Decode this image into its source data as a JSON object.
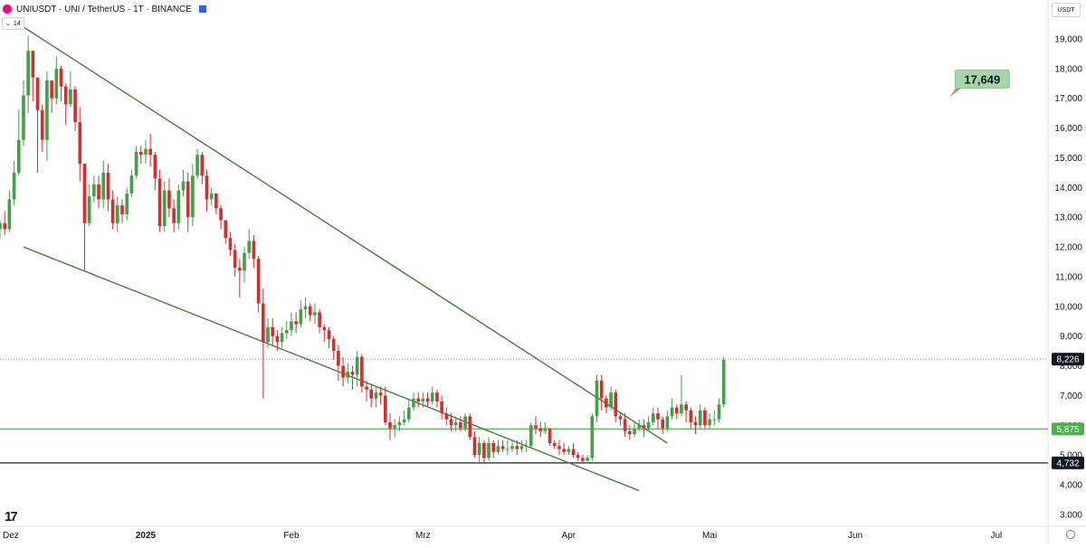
{
  "header": {
    "symbol_title": "UNIUSDT · UNI / TetherUS · 1T · BINANCE",
    "interval_badge": "14",
    "currency_label": "USDT"
  },
  "chart_data": {
    "type": "candlestick",
    "y_ticks": [
      3000,
      4000,
      5000,
      6000,
      7000,
      8000,
      9000,
      10000,
      11000,
      12000,
      13000,
      14000,
      15000,
      16000,
      17000,
      18000,
      19000
    ],
    "ylim": [
      2600,
      19700
    ],
    "xlim": [
      "2024-12-01",
      "2025-07-12"
    ],
    "x_ticks": [
      {
        "date": "2024-12-01",
        "label": "Dez",
        "bold": false
      },
      {
        "date": "2025-01-01",
        "label": "2025",
        "bold": true
      },
      {
        "date": "2025-02-01",
        "label": "Feb",
        "bold": false
      },
      {
        "date": "2025-03-01",
        "label": "Mrz",
        "bold": false
      },
      {
        "date": "2025-04-01",
        "label": "Apr",
        "bold": false
      },
      {
        "date": "2025-05-01",
        "label": "Mai",
        "bold": false
      },
      {
        "date": "2025-06-01",
        "label": "Jun",
        "bold": false
      },
      {
        "date": "2025-07-01",
        "label": "Jul",
        "bold": false
      }
    ],
    "start_date": "2024-12-01",
    "closes": [
      12.8,
      12.6,
      13.6,
      14.5,
      15.6,
      17.1,
      18.6,
      17.7,
      16.6,
      15.6,
      17.6,
      17.0,
      18.0,
      17.4,
      16.8,
      17.3,
      16.2,
      14.8,
      12.8,
      13.7,
      14.1,
      13.6,
      14.5,
      13.6,
      12.8,
      13.4,
      13.1,
      13.8,
      14.4,
      15.2,
      15.1,
      15.3,
      15.1,
      14.3,
      12.7,
      13.9,
      13.3,
      12.8,
      13.9,
      14.2,
      13.0,
      14.4,
      15.1,
      14.4,
      13.6,
      13.8,
      13.3,
      12.9,
      12.3,
      11.9,
      11.3,
      11.2,
      11.8,
      12.2,
      11.6,
      10.1,
      8.8,
      9.3,
      9.0,
      8.8,
      9.1,
      9.2,
      9.5,
      9.4,
      9.9,
      10.0,
      9.7,
      9.8,
      9.3,
      9.2,
      8.9,
      8.5,
      8.0,
      7.6,
      7.8,
      7.7,
      8.3,
      7.3,
      7.2,
      6.9,
      7.1,
      7.0,
      6.1,
      5.9,
      6.0,
      6.1,
      6.2,
      6.6,
      6.9,
      6.8,
      6.9,
      6.8,
      7.1,
      6.8,
      6.4,
      6.2,
      6.0,
      6.1,
      5.9,
      6.3,
      5.6,
      5.0,
      5.4,
      4.9,
      5.4,
      5.1,
      5.3,
      5.2,
      5.2,
      5.3,
      5.2,
      5.3,
      5.3,
      6.0,
      5.9,
      5.8,
      5.9,
      5.4,
      5.3,
      5.2,
      5.1,
      5.2,
      5.0,
      4.9,
      4.8,
      4.9,
      6.3,
      7.5,
      6.9,
      6.6,
      7.1,
      6.3,
      6.2,
      5.8,
      5.7,
      5.9,
      6.0,
      5.9,
      6.1,
      6.4,
      6.2,
      5.9,
      6.3,
      6.6,
      6.4,
      6.7,
      6.5,
      6.1,
      6.0,
      6.5,
      6.0,
      6.2,
      6.2,
      6.7,
      8.2
    ],
    "highs": [
      12.9,
      13.2,
      13.9,
      14.9,
      16.6,
      17.6,
      19.1,
      18.6,
      17.7,
      16.8,
      17.9,
      17.6,
      18.4,
      18.1,
      17.5,
      17.9,
      17.4,
      16.7,
      13.5,
      14.1,
      14.4,
      14.4,
      14.9,
      14.8,
      13.9,
      13.7,
      13.6,
      14.0,
      14.6,
      15.4,
      15.4,
      15.6,
      15.8,
      15.2,
      14.6,
      14.2,
      14.3,
      13.6,
      14.1,
      14.6,
      14.5,
      14.8,
      15.3,
      15.2,
      14.6,
      14.0,
      13.8,
      13.4,
      12.7,
      12.5,
      12.1,
      11.6,
      12.0,
      12.6,
      12.4,
      11.7,
      10.6,
      9.6,
      9.6,
      9.2,
      9.3,
      9.5,
      9.8,
      9.8,
      10.2,
      10.3,
      10.1,
      10.1,
      9.9,
      9.4,
      9.3,
      9.0,
      8.7,
      8.3,
      8.1,
      8.0,
      8.5,
      8.4,
      7.5,
      7.4,
      7.3,
      7.3,
      7.3,
      6.4,
      6.2,
      6.3,
      6.5,
      6.9,
      7.1,
      7.1,
      7.1,
      7.1,
      7.3,
      7.2,
      7.0,
      6.6,
      6.4,
      6.3,
      6.3,
      6.4,
      6.4,
      5.8,
      5.6,
      5.5,
      5.6,
      5.5,
      5.5,
      5.5,
      5.5,
      5.5,
      5.5,
      5.5,
      5.5,
      6.1,
      6.3,
      6.1,
      6.1,
      5.9,
      5.5,
      5.5,
      5.4,
      5.3,
      5.4,
      5.1,
      5.0,
      5.0,
      6.4,
      7.7,
      7.7,
      7.0,
      7.3,
      7.2,
      6.4,
      6.4,
      6.0,
      6.1,
      6.2,
      6.2,
      6.3,
      6.6,
      6.6,
      6.3,
      6.5,
      6.9,
      6.7,
      7.7,
      6.8,
      6.6,
      6.3,
      6.7,
      6.6,
      6.4,
      6.5,
      6.9,
      8.3
    ],
    "lows": [
      12.3,
      12.4,
      12.5,
      13.4,
      14.4,
      15.4,
      16.5,
      16.9,
      14.5,
      15.2,
      14.9,
      16.5,
      16.8,
      16.9,
      16.1,
      16.7,
      15.9,
      14.2,
      11.2,
      12.7,
      13.5,
      13.3,
      13.3,
      13.2,
      12.6,
      12.5,
      12.8,
      12.9,
      13.7,
      14.3,
      14.8,
      14.8,
      14.7,
      13.9,
      12.5,
      12.5,
      13.0,
      12.5,
      12.6,
      13.7,
      12.5,
      12.7,
      14.3,
      14.1,
      13.2,
      13.4,
      13.1,
      12.6,
      12.1,
      11.7,
      11.0,
      10.3,
      10.8,
      11.6,
      11.3,
      9.8,
      6.9,
      8.6,
      8.7,
      8.5,
      8.6,
      8.9,
      9.0,
      9.1,
      9.3,
      9.6,
      9.5,
      9.4,
      9.1,
      8.8,
      8.6,
      8.2,
      7.5,
      7.3,
      7.4,
      7.2,
      7.3,
      7.1,
      6.8,
      6.6,
      6.6,
      6.7,
      6.0,
      5.5,
      5.6,
      5.8,
      6.0,
      6.1,
      6.5,
      6.6,
      6.6,
      6.6,
      6.7,
      6.6,
      6.2,
      6.0,
      5.8,
      5.8,
      5.8,
      5.8,
      5.5,
      4.9,
      4.7,
      4.7,
      4.8,
      4.9,
      5.0,
      5.1,
      5.0,
      5.1,
      5.0,
      5.1,
      5.1,
      5.2,
      5.7,
      5.6,
      5.7,
      5.3,
      5.2,
      5.0,
      5.0,
      5.0,
      4.9,
      4.8,
      4.7,
      4.8,
      4.8,
      6.1,
      6.5,
      6.4,
      6.5,
      6.1,
      6.0,
      5.6,
      5.5,
      5.6,
      5.8,
      5.6,
      5.8,
      6.0,
      5.9,
      5.7,
      5.8,
      6.2,
      6.2,
      6.3,
      6.1,
      5.9,
      5.7,
      5.9,
      5.9,
      5.9,
      6.0,
      6.1,
      6.6
    ],
    "trendlines": [
      {
        "from": [
          "2024-12-06",
          19400
        ],
        "to": [
          "2025-04-22",
          5400
        ],
        "color": "#4a7f3f"
      },
      {
        "from": [
          "2024-12-06",
          12000
        ],
        "to": [
          "2025-04-16",
          3800
        ],
        "color": "#4a7f3f"
      }
    ],
    "horizontal_levels": [
      {
        "value": 8226,
        "label": "8,226",
        "style": "dotted",
        "color": "#9598a1",
        "label_bg": "#131722"
      },
      {
        "value": 5875,
        "label": "5,875",
        "style": "solid",
        "color": "#66bb6a",
        "label_bg": "#4caf50"
      },
      {
        "value": 4732,
        "label": "4,732",
        "style": "solid",
        "color": "#444444",
        "label_bg": "#131722"
      }
    ],
    "target_callout": {
      "label": "17,649",
      "value": 17649,
      "date": "2025-06-28",
      "bg": "#a5d6a7"
    },
    "colors": {
      "up": "#43a047",
      "down": "#d32f2f",
      "axis_text": "#131722",
      "axis_line": "#e0e3eb"
    }
  }
}
